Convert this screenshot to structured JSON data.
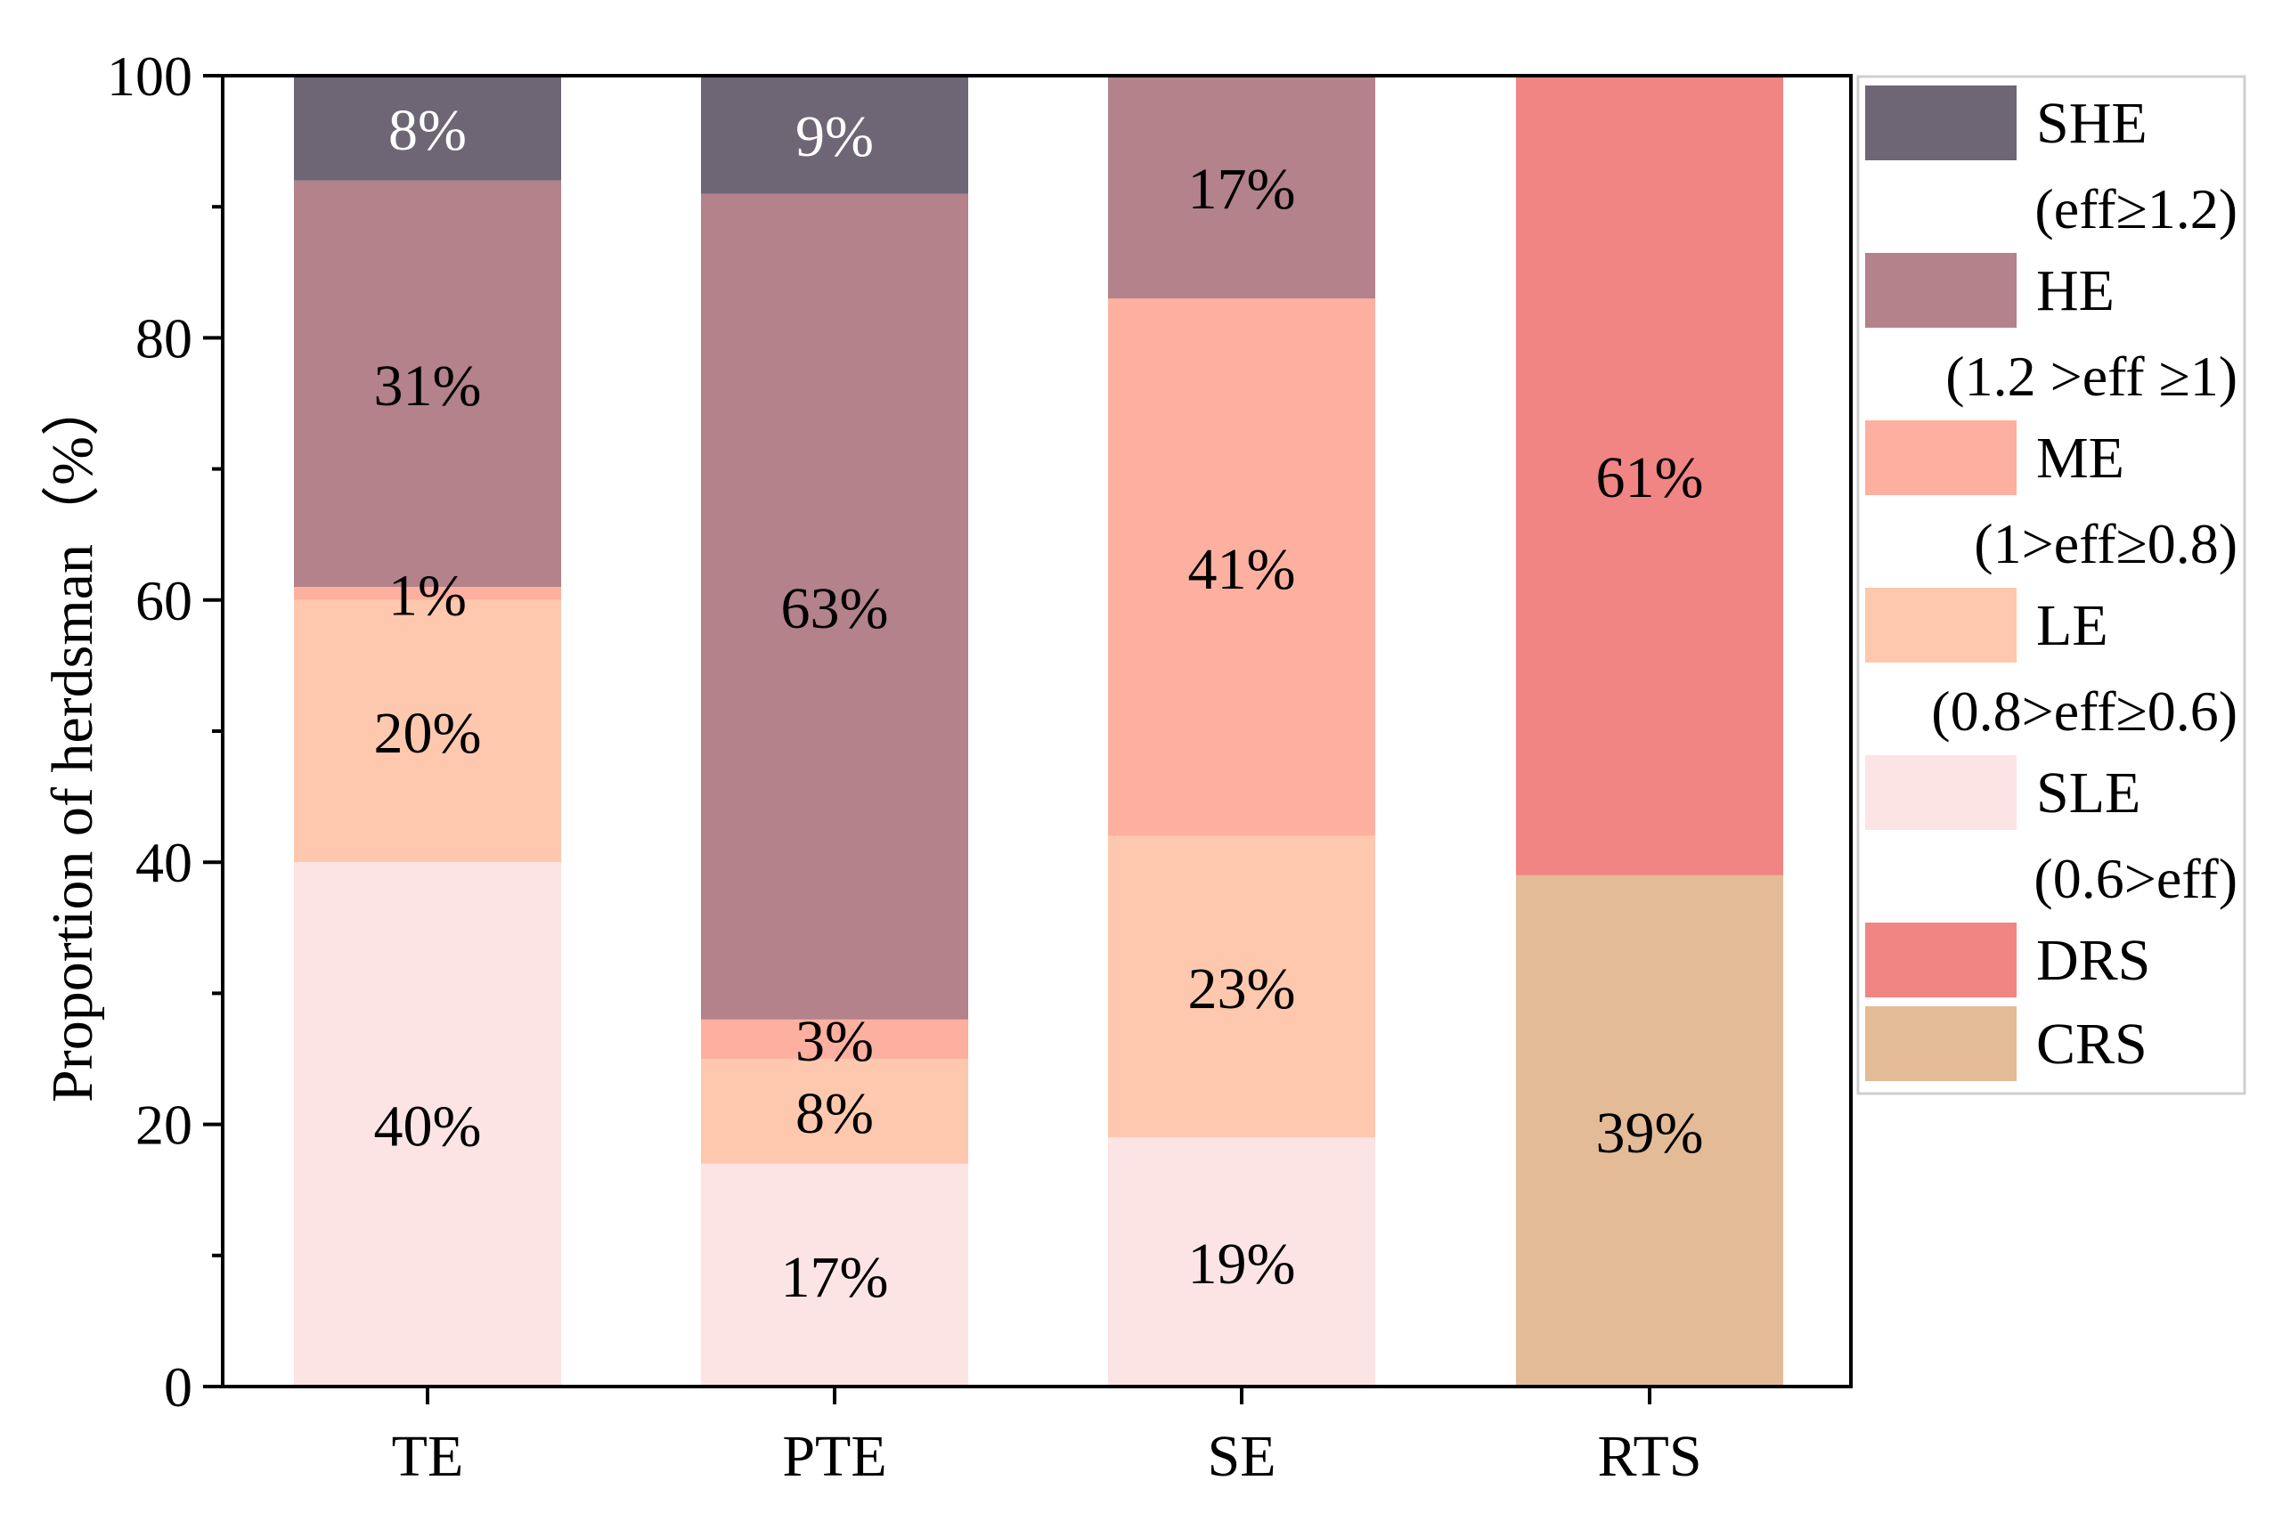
{
  "chart_data": {
    "type": "bar",
    "stacked": true,
    "categories": [
      "TE",
      "PTE",
      "SE",
      "RTS"
    ],
    "ylabel": "Proportion of herdsman（%）",
    "xlabel": "",
    "ylim": [
      0,
      100
    ],
    "yticks": [
      0,
      20,
      40,
      60,
      80,
      100
    ],
    "legend_position": "right",
    "series": [
      {
        "key": "SLE",
        "name": "SLE",
        "range": "(0.6>eff)",
        "color": "#fde4e4",
        "values": [
          40,
          17,
          19,
          null
        ],
        "labels": [
          "40%",
          "17%",
          "19%",
          ""
        ]
      },
      {
        "key": "LE",
        "name": "LE",
        "range": "(0.8>eff≥0.6)",
        "color": "#fdc8ad",
        "values": [
          20,
          8,
          23,
          null
        ],
        "labels": [
          "20%",
          "8%",
          "23%",
          ""
        ]
      },
      {
        "key": "ME",
        "name": "ME",
        "range": "(1>eff≥0.8)",
        "color": "#fdb0a0",
        "values": [
          1,
          3,
          41,
          null
        ],
        "labels": [
          "1%",
          "3%",
          "41%",
          ""
        ]
      },
      {
        "key": "HE",
        "name": "HE",
        "range": "(1.2 >eff ≥1)",
        "color": "#b3828b",
        "values": [
          31,
          63,
          17,
          null
        ],
        "labels": [
          "31%",
          "63%",
          "17%",
          ""
        ]
      },
      {
        "key": "SHE",
        "name": "SHE",
        "range": "(eff≥1.2)",
        "color": "#6e6675",
        "values": [
          8,
          9,
          null,
          null
        ],
        "labels": [
          "8%",
          "9%",
          "",
          ""
        ]
      },
      {
        "key": "CRS",
        "name": "CRS",
        "range": "",
        "color": "#e4bb97",
        "values": [
          null,
          null,
          null,
          39
        ],
        "labels": [
          "",
          "",
          "",
          "39%"
        ]
      },
      {
        "key": "DRS",
        "name": "DRS",
        "range": "",
        "color": "#f18583",
        "values": [
          null,
          null,
          null,
          61
        ],
        "labels": [
          "",
          "",
          "",
          "61%"
        ]
      }
    ],
    "label_colors": {
      "SHE": "#ffffff"
    },
    "legend_order": [
      "SHE",
      "HE",
      "ME",
      "LE",
      "SLE",
      "DRS",
      "CRS"
    ]
  }
}
